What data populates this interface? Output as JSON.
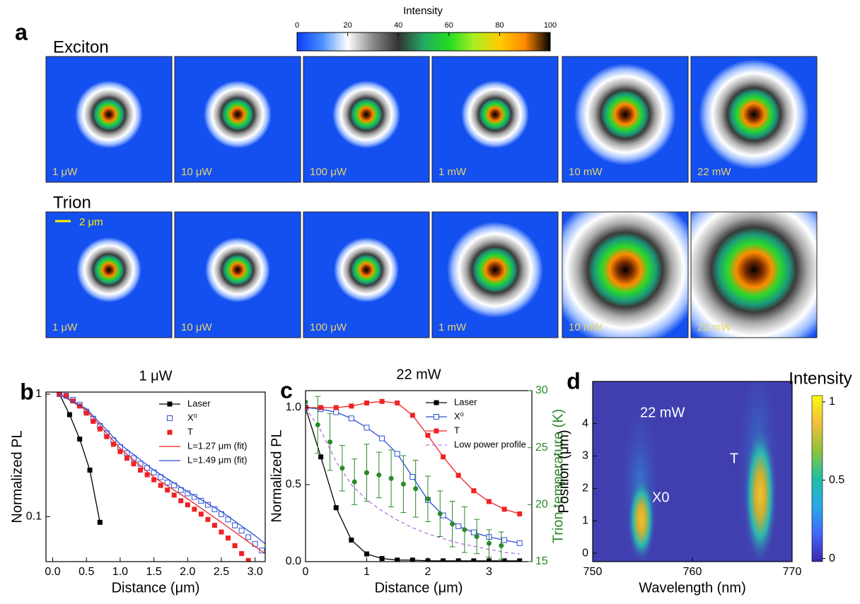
{
  "panel_a": {
    "label": "a",
    "colorbar": {
      "title": "Intensity",
      "lim": [
        0,
        100
      ],
      "ticks": [
        0,
        20,
        40,
        60,
        80,
        100
      ],
      "colors": [
        "#0a3cff",
        "#4a90ff",
        "#ffffff",
        "#8a8a8a",
        "#333333",
        "#22aa66",
        "#22dd22",
        "#aaee22",
        "#ffcc00",
        "#ff8800",
        "#000000"
      ]
    },
    "rows": [
      {
        "name": "Exciton",
        "powers": [
          "1 μW",
          "10 μW",
          "100 μW",
          "1 mW",
          "10 mW",
          "22 mW"
        ]
      },
      {
        "name": "Trion",
        "powers": [
          "1 μW",
          "10 μW",
          "100 μW",
          "1 mW",
          "10 mW",
          "22 mW"
        ]
      }
    ],
    "scale_bar": "2 μm"
  },
  "chart_data": [
    {
      "type": "line",
      "panel_label": "b",
      "title": "1 μW",
      "x_label": "Distance (μm)",
      "y_label": "Normalized PL",
      "log_y": true,
      "xlim": [
        -0.1,
        3.15
      ],
      "xticks": [
        {
          "value": 0,
          "label": "0.0"
        },
        {
          "value": 0.5,
          "label": "0.5"
        },
        {
          "value": 1,
          "label": "1.0"
        },
        {
          "value": 1.5,
          "label": "1.5"
        },
        {
          "value": 2,
          "label": "2.0"
        },
        {
          "value": 2.5,
          "label": "2.5"
        },
        {
          "value": 3,
          "label": "3.0"
        }
      ],
      "ylim": [
        0.043,
        1.04
      ],
      "yticks": [
        0.1,
        1
      ],
      "legend": "upper right",
      "series": [
        {
          "name": "Laser",
          "color": "#000000",
          "marker": "filled-square",
          "line_style": "solid",
          "x": [
            0.1,
            0.25,
            0.4,
            0.55,
            0.7
          ],
          "values": [
            1.0,
            0.68,
            0.43,
            0.24,
            0.09
          ]
        },
        {
          "name": "X⁰",
          "color": "#2a4fd8",
          "marker": "open-square",
          "line_style": "none",
          "x": [
            0.1,
            0.2,
            0.3,
            0.4,
            0.5,
            0.6,
            0.7,
            0.8,
            0.9,
            1.0,
            1.1,
            1.2,
            1.3,
            1.4,
            1.5,
            1.6,
            1.7,
            1.8,
            1.9,
            2.0,
            2.1,
            2.2,
            2.3,
            2.4,
            2.5,
            2.6,
            2.7,
            2.8,
            2.9,
            3.0,
            3.1
          ],
          "values": [
            1.0,
            0.97,
            0.9,
            0.82,
            0.72,
            0.63,
            0.55,
            0.48,
            0.42,
            0.37,
            0.33,
            0.3,
            0.27,
            0.25,
            0.23,
            0.21,
            0.19,
            0.18,
            0.165,
            0.155,
            0.145,
            0.135,
            0.125,
            0.115,
            0.105,
            0.095,
            0.085,
            0.077,
            0.068,
            0.06,
            0.053
          ]
        },
        {
          "name": "T",
          "color": "#ee2222",
          "marker": "filled-square",
          "line_style": "none",
          "x": [
            0.1,
            0.2,
            0.3,
            0.4,
            0.5,
            0.6,
            0.7,
            0.8,
            0.9,
            1.0,
            1.1,
            1.2,
            1.3,
            1.4,
            1.5,
            1.6,
            1.7,
            1.8,
            1.9,
            2.0,
            2.1,
            2.2,
            2.3,
            2.4,
            2.5,
            2.6,
            2.7,
            2.8,
            2.9
          ],
          "values": [
            1.0,
            0.97,
            0.88,
            0.8,
            0.7,
            0.6,
            0.52,
            0.45,
            0.39,
            0.34,
            0.3,
            0.27,
            0.24,
            0.22,
            0.2,
            0.18,
            0.165,
            0.15,
            0.135,
            0.125,
            0.115,
            0.105,
            0.095,
            0.085,
            0.075,
            0.067,
            0.058,
            0.05,
            0.044
          ]
        },
        {
          "name": "L=1.27 μm (fit)",
          "color": "#ee2222",
          "marker": "none",
          "line_style": "solid",
          "x": [
            0.1,
            0.5,
            1.0,
            1.5,
            2.0,
            2.5,
            3.0,
            3.15
          ],
          "values": [
            1.0,
            0.74,
            0.36,
            0.21,
            0.14,
            0.09,
            0.057,
            0.05
          ]
        },
        {
          "name": "L=1.49 μm (fit)",
          "color": "#2a4fd8",
          "marker": "none",
          "line_style": "solid",
          "x": [
            0.1,
            0.5,
            1.0,
            1.5,
            2.0,
            2.5,
            3.0,
            3.15
          ],
          "values": [
            1.0,
            0.76,
            0.39,
            0.24,
            0.16,
            0.11,
            0.07,
            0.06
          ]
        }
      ]
    },
    {
      "type": "line",
      "panel_label": "c",
      "title": "22 mW",
      "x_label": "Distance (μm)",
      "y_label": "Normalized PL",
      "y2_label": "Trion temperature (K)",
      "y2_color": "#2a8a2a",
      "xlim": [
        0,
        3.7
      ],
      "xticks": [
        0,
        1,
        2,
        3
      ],
      "ylim": [
        0,
        1.11
      ],
      "yticks": [
        {
          "value": 0,
          "label": "0.0"
        },
        {
          "value": 0.5,
          "label": "0.5"
        },
        {
          "value": 1,
          "label": "1.0"
        }
      ],
      "y2lim": [
        15,
        30
      ],
      "y2ticks": [
        15,
        20,
        25,
        30
      ],
      "legend": "upper right",
      "series": [
        {
          "name": "Laser",
          "color": "#000000",
          "marker": "filled-square",
          "line_style": "solid",
          "x": [
            0,
            0.25,
            0.5,
            0.75,
            1.0,
            1.25,
            1.5,
            1.75,
            2.0,
            2.25,
            2.5,
            2.75,
            3.0,
            3.25,
            3.5
          ],
          "values": [
            1.0,
            0.68,
            0.35,
            0.14,
            0.05,
            0.02,
            0.01,
            0.01,
            0.005,
            0.005,
            0.005,
            0.005,
            0.005,
            0.005,
            0.005
          ]
        },
        {
          "name": "X⁰",
          "color": "#2a4fd8",
          "marker": "open-square",
          "line_style": "solid",
          "x": [
            0,
            0.25,
            0.5,
            0.75,
            1.0,
            1.25,
            1.5,
            1.75,
            2.0,
            2.25,
            2.5,
            2.75,
            3.0,
            3.25,
            3.5
          ],
          "values": [
            1.0,
            0.99,
            0.97,
            0.93,
            0.87,
            0.8,
            0.7,
            0.55,
            0.4,
            0.3,
            0.23,
            0.19,
            0.16,
            0.14,
            0.12
          ]
        },
        {
          "name": "T",
          "color": "#ee2222",
          "marker": "filled-square",
          "line_style": "solid",
          "x": [
            0,
            0.25,
            0.5,
            0.75,
            1.0,
            1.25,
            1.5,
            1.75,
            2.0,
            2.25,
            2.5,
            2.75,
            3.0,
            3.25,
            3.5
          ],
          "values": [
            1.0,
            1.0,
            1.0,
            1.01,
            1.03,
            1.04,
            1.03,
            0.95,
            0.82,
            0.68,
            0.56,
            0.46,
            0.39,
            0.34,
            0.31
          ]
        },
        {
          "name": "Low power profile",
          "color": "#b070e0",
          "marker": "none",
          "line_style": "dashed",
          "x": [
            0,
            0.25,
            0.5,
            0.75,
            1.0,
            1.25,
            1.5,
            1.75,
            2.0,
            2.25,
            2.5,
            2.75,
            3.0,
            3.25,
            3.5
          ],
          "values": [
            1.0,
            0.85,
            0.65,
            0.5,
            0.4,
            0.33,
            0.27,
            0.22,
            0.18,
            0.15,
            0.12,
            0.1,
            0.08,
            0.06,
            0.05
          ]
        },
        {
          "color": "#2a8a2a",
          "axis": "y2",
          "marker": "filled-circle",
          "line_style": "none",
          "x": [
            0,
            0.2,
            0.4,
            0.6,
            0.8,
            1.0,
            1.2,
            1.4,
            1.6,
            1.8,
            2.0,
            2.2,
            2.4,
            2.6,
            2.8,
            3.0,
            3.2
          ],
          "values": [
            29,
            27,
            25.5,
            23.2,
            22,
            22.8,
            22.6,
            22.3,
            21.8,
            21.4,
            20.5,
            19.2,
            18.3,
            17.8,
            17.2,
            16.6,
            16.4
          ],
          "errors": [
            1,
            2.5,
            2.5,
            2,
            2,
            2.5,
            2,
            2.5,
            2.5,
            2.5,
            2,
            2,
            2,
            2,
            1.5,
            1.2,
            1.2
          ]
        }
      ]
    },
    {
      "type": "heatmap",
      "panel_label": "d",
      "x_label": "Wavelength (nm)",
      "y_label": "Position (μm)",
      "xlim": [
        750,
        770
      ],
      "xticks": [
        750,
        760,
        770
      ],
      "ylim": [
        -0.26,
        5.3
      ],
      "yticks": [
        0,
        1,
        2,
        3,
        4
      ],
      "annotations": [
        "22 mW",
        "X0",
        "T"
      ],
      "colorbar": {
        "title": "Intensity",
        "lim": [
          -0.02,
          1.04
        ],
        "ticks": [
          0,
          0.5,
          1
        ],
        "colors": [
          "#3e26a8",
          "#4367fd",
          "#2aa8e5",
          "#1fbfa6",
          "#8cc43a",
          "#f5bd3c",
          "#f9fb0e"
        ]
      }
    }
  ]
}
